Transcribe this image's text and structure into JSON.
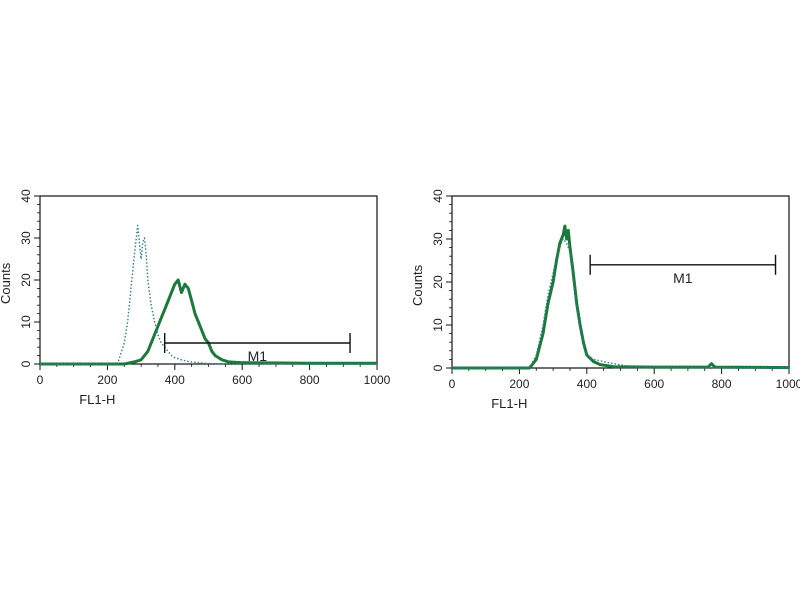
{
  "colors": {
    "solid": "#1a7a3a",
    "dotted": "#2e7d8c",
    "frame": "#111111"
  },
  "chart_data": [
    {
      "type": "line",
      "panel": "left",
      "xlabel": "FL1-H",
      "ylabel": "Counts",
      "xlim": [
        0,
        1000
      ],
      "ylim": [
        0,
        40
      ],
      "xticks": [
        0,
        200,
        400,
        600,
        800,
        1000
      ],
      "yticks": [
        0,
        10,
        20,
        30,
        40
      ],
      "marker": {
        "label": "M1",
        "x_start": 370,
        "x_end": 920,
        "y": 5
      },
      "series": [
        {
          "style": "solid",
          "color": "#1a7a3a",
          "x": [
            0,
            250,
            280,
            300,
            320,
            340,
            355,
            370,
            380,
            390,
            400,
            410,
            420,
            430,
            440,
            450,
            460,
            470,
            480,
            490,
            500,
            510,
            520,
            540,
            560,
            600,
            800,
            1000
          ],
          "y": [
            0,
            0,
            0.5,
            1,
            3,
            7,
            10,
            13,
            15,
            17,
            19,
            20,
            17,
            19,
            18,
            15,
            12,
            10,
            8,
            6,
            5,
            3,
            2,
            1,
            0.5,
            0.3,
            0.2,
            0.2
          ]
        },
        {
          "style": "dotted",
          "color": "#2e7d8c",
          "x": [
            0,
            230,
            250,
            260,
            270,
            280,
            290,
            300,
            305,
            310,
            315,
            320,
            330,
            340,
            350,
            360,
            370,
            380,
            390,
            400,
            420,
            440,
            470,
            500,
            550,
            1000
          ],
          "y": [
            0,
            0,
            5,
            10,
            18,
            26,
            33,
            25,
            29,
            30,
            26,
            20,
            14,
            10,
            7,
            5,
            4,
            3,
            2,
            1.5,
            1,
            0.6,
            0.3,
            0.1,
            0,
            0
          ]
        }
      ]
    },
    {
      "type": "line",
      "panel": "right",
      "xlabel": "FL1-H",
      "ylabel": "Counts",
      "xlim": [
        0,
        1000
      ],
      "ylim": [
        0,
        40
      ],
      "xticks": [
        0,
        200,
        400,
        600,
        800,
        1000
      ],
      "yticks": [
        0,
        10,
        20,
        30,
        40
      ],
      "marker": {
        "label": "M1",
        "x_start": 410,
        "x_end": 960,
        "y": 24
      },
      "series": [
        {
          "style": "solid",
          "color": "#1a7a3a",
          "x": [
            0,
            230,
            250,
            270,
            285,
            300,
            310,
            320,
            330,
            335,
            340,
            345,
            350,
            360,
            370,
            380,
            390,
            400,
            420,
            440,
            480,
            600,
            760,
            770,
            780,
            1000
          ],
          "y": [
            0,
            0,
            2,
            8,
            15,
            20,
            25,
            29,
            31,
            33,
            30,
            32,
            28,
            22,
            15,
            10,
            6,
            3,
            1.5,
            0.8,
            0.3,
            0.2,
            0.2,
            1,
            0.2,
            0.1
          ]
        },
        {
          "style": "dotted",
          "color": "#2e7d8c",
          "x": [
            0,
            230,
            250,
            270,
            285,
            300,
            310,
            320,
            330,
            340,
            350,
            360,
            370,
            380,
            390,
            400,
            420,
            450,
            480,
            520,
            600,
            1000
          ],
          "y": [
            0,
            0,
            3,
            10,
            17,
            22,
            26,
            28,
            30,
            29,
            27,
            20,
            14,
            9,
            5,
            3,
            2,
            1.5,
            1,
            0.5,
            0.2,
            0
          ]
        }
      ]
    }
  ]
}
